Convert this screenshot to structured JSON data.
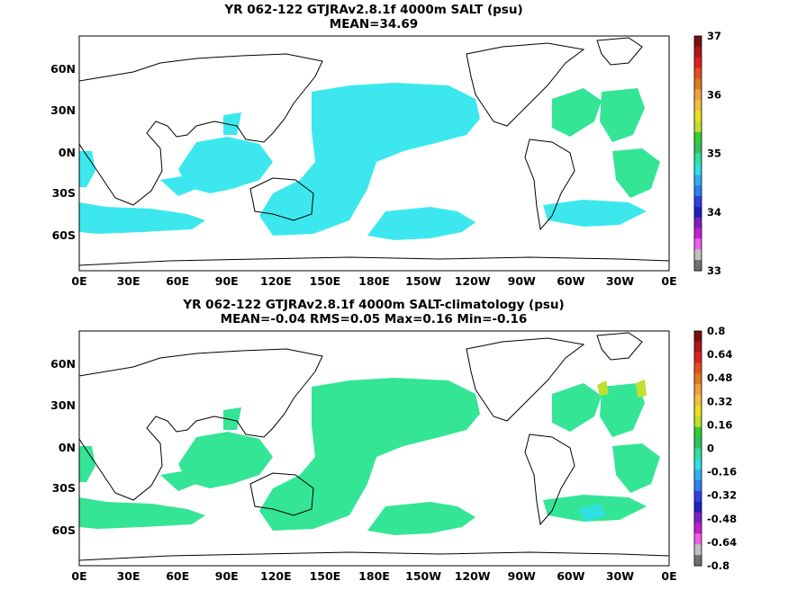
{
  "panels": [
    {
      "title_line1": "YR 062-122 GTJRAv2.8.1f 4000m SALT (psu)",
      "title_line2": "MEAN=34.69",
      "lat_labels": [
        "60N",
        "30N",
        "0N",
        "30S",
        "60S"
      ],
      "lon_labels": [
        "0E",
        "30E",
        "60E",
        "90E",
        "120E",
        "150E",
        "180E",
        "150W",
        "120W",
        "90W",
        "60W",
        "30W",
        "0E"
      ],
      "colorbar": {
        "labels": [
          "37",
          "36",
          "35",
          "34",
          "33"
        ],
        "colors": [
          "#7a1010",
          "#b01818",
          "#e02020",
          "#e05020",
          "#e07a20",
          "#f0a040",
          "#f0c040",
          "#e8e020",
          "#c0e030",
          "#30d030",
          "#30c060",
          "#30e0a0",
          "#30e0e0",
          "#30b0f0",
          "#3080f0",
          "#3040e0",
          "#2020c0",
          "#8020c0",
          "#c020d0",
          "#f060f0",
          "#c0c0c0",
          "#707070"
        ]
      },
      "field_color": "#3ce8ee",
      "atlantic_color": "#34e596"
    },
    {
      "title_line1": "YR 062-122 GTJRAv2.8.1f 4000m SALT-climatology (psu)",
      "title_line2": "MEAN=-0.04   RMS=0.05   Max=0.16   Min=-0.16",
      "lat_labels": [
        "60N",
        "30N",
        "0N",
        "30S",
        "60S"
      ],
      "lon_labels": [
        "0E",
        "30E",
        "60E",
        "90E",
        "120E",
        "150E",
        "180E",
        "150W",
        "120W",
        "90W",
        "60W",
        "30W",
        "0E"
      ],
      "colorbar": {
        "labels": [
          "0.8",
          "0.64",
          "0.48",
          "0.32",
          "0.16",
          "0",
          "-0.16",
          "-0.32",
          "-0.48",
          "-0.64",
          "-0.8"
        ],
        "colors": [
          "#7a1010",
          "#b01818",
          "#e02020",
          "#e05020",
          "#e07a20",
          "#f0a040",
          "#f0c040",
          "#e8e020",
          "#c0e030",
          "#30d030",
          "#30c060",
          "#30e0a0",
          "#30e0e0",
          "#30b0f0",
          "#3080f0",
          "#3040e0",
          "#2020c0",
          "#8020c0",
          "#c020d0",
          "#f060f0",
          "#c0c0c0",
          "#707070"
        ]
      },
      "field_color": "#34e596",
      "atlantic_color": "#34e596"
    }
  ]
}
